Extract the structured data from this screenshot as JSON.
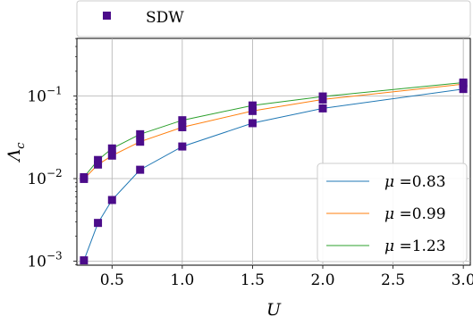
{
  "chart_data": {
    "type": "line",
    "xlabel": "U",
    "ylabel": "Λc",
    "xlim": [
      0.25,
      3.05
    ],
    "ylim_log10": [
      -3.05,
      -0.3
    ],
    "yscale": "log",
    "grid": true,
    "x_ticks": [
      0.5,
      1.0,
      1.5,
      2.0,
      2.5,
      3.0
    ],
    "x_tick_labels": [
      "0.5",
      "1.0",
      "1.5",
      "2.0",
      "2.5",
      "3.0"
    ],
    "y_ticks": [
      0.001,
      0.01,
      0.1
    ],
    "y_tick_labels": [
      {
        "base": "10",
        "exp": "−3"
      },
      {
        "base": "10",
        "exp": "−2"
      },
      {
        "base": "10",
        "exp": "−1"
      }
    ],
    "marker_legend": {
      "label": "SDW",
      "placement": "top",
      "color": "#4b0c8a"
    },
    "line_legend": {
      "placement": "lower-right"
    },
    "series": [
      {
        "name": "μ =0.83",
        "legend_symbol": "μ",
        "legend_value": "=0.83",
        "color": "#1f77b4",
        "x": [
          0.3,
          0.4,
          0.5,
          0.7,
          1.0,
          1.5,
          2.0,
          3.0
        ],
        "y": [
          0.00102,
          0.0029,
          0.0055,
          0.0128,
          0.0245,
          0.047,
          0.071,
          0.122
        ]
      },
      {
        "name": "μ =0.99",
        "legend_symbol": "μ",
        "legend_value": "=0.99",
        "color": "#ff7f0e",
        "x": [
          0.3,
          0.4,
          0.5,
          0.7,
          1.0,
          1.5,
          2.0,
          3.0
        ],
        "y": [
          0.0099,
          0.0148,
          0.019,
          0.028,
          0.042,
          0.066,
          0.091,
          0.14
        ]
      },
      {
        "name": "μ =1.23",
        "legend_symbol": "μ",
        "legend_value": "=1.23",
        "color": "#2ca02c",
        "x": [
          0.3,
          0.4,
          0.5,
          0.7,
          1.0,
          1.5,
          2.0,
          3.0
        ],
        "y": [
          0.0104,
          0.0168,
          0.0232,
          0.0345,
          0.051,
          0.077,
          0.099,
          0.146
        ]
      }
    ]
  }
}
